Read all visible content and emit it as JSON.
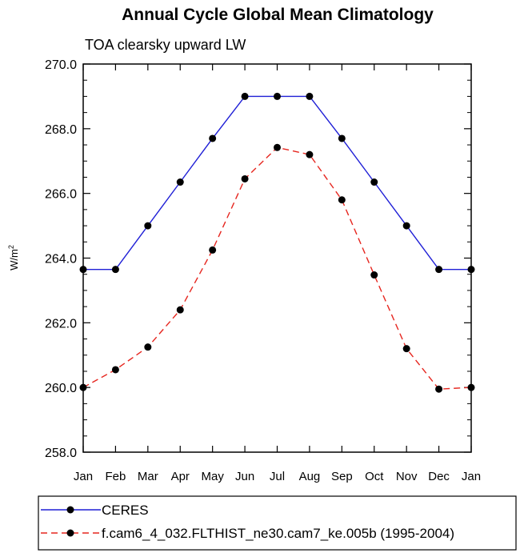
{
  "chart_data": {
    "type": "line",
    "title": "Annual Cycle Global Mean Climatology",
    "subtitle": "TOA clearsky upward LW",
    "xlabel": "",
    "ylabel": "W/m",
    "ylabel_superscript": "2",
    "ylim": [
      258.0,
      270.0
    ],
    "yticks": [
      "258.0",
      "260.0",
      "262.0",
      "264.0",
      "266.0",
      "268.0",
      "270.0"
    ],
    "categories": [
      "Jan",
      "Feb",
      "Mar",
      "Apr",
      "May",
      "Jun",
      "Jul",
      "Aug",
      "Sep",
      "Oct",
      "Nov",
      "Dec",
      "Jan"
    ],
    "grid": false,
    "legend_position": "bottom",
    "series": [
      {
        "name": "CERES",
        "color": "#1f1fd6",
        "dash": "solid",
        "values": [
          263.65,
          263.65,
          265.0,
          266.35,
          267.7,
          269.0,
          269.0,
          269.0,
          267.7,
          266.35,
          265.0,
          263.65,
          263.65
        ]
      },
      {
        "name": "f.cam6_4_032.FLTHIST_ne30.cam7_ke.005b (1995-2004)",
        "color": "#e6261f",
        "dash": "dashed",
        "values": [
          260.0,
          260.55,
          261.25,
          262.4,
          264.25,
          266.45,
          267.42,
          267.2,
          265.8,
          263.48,
          261.2,
          259.95,
          260.0
        ]
      }
    ]
  }
}
